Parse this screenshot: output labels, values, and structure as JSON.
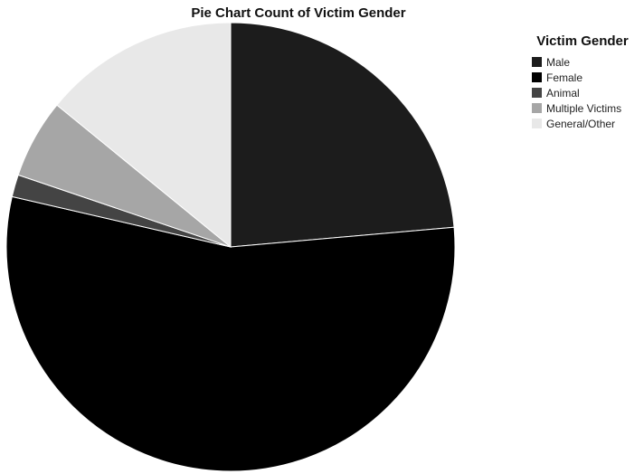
{
  "chart_data": {
    "type": "pie",
    "title": "Pie Chart Count of Victim Gender",
    "legend_title": "Victim Gender",
    "legend_position": "right",
    "categories": [
      "Male",
      "Female",
      "Animal",
      "Multiple Victims",
      "General/Other"
    ],
    "values": [
      23.6,
      55.0,
      1.6,
      5.7,
      14.1
    ],
    "colors": [
      "#1c1c1c",
      "#000000",
      "#444444",
      "#a6a6a6",
      "#e8e8e8"
    ],
    "start_angle": "12 o'clock",
    "direction": "clockwise"
  }
}
